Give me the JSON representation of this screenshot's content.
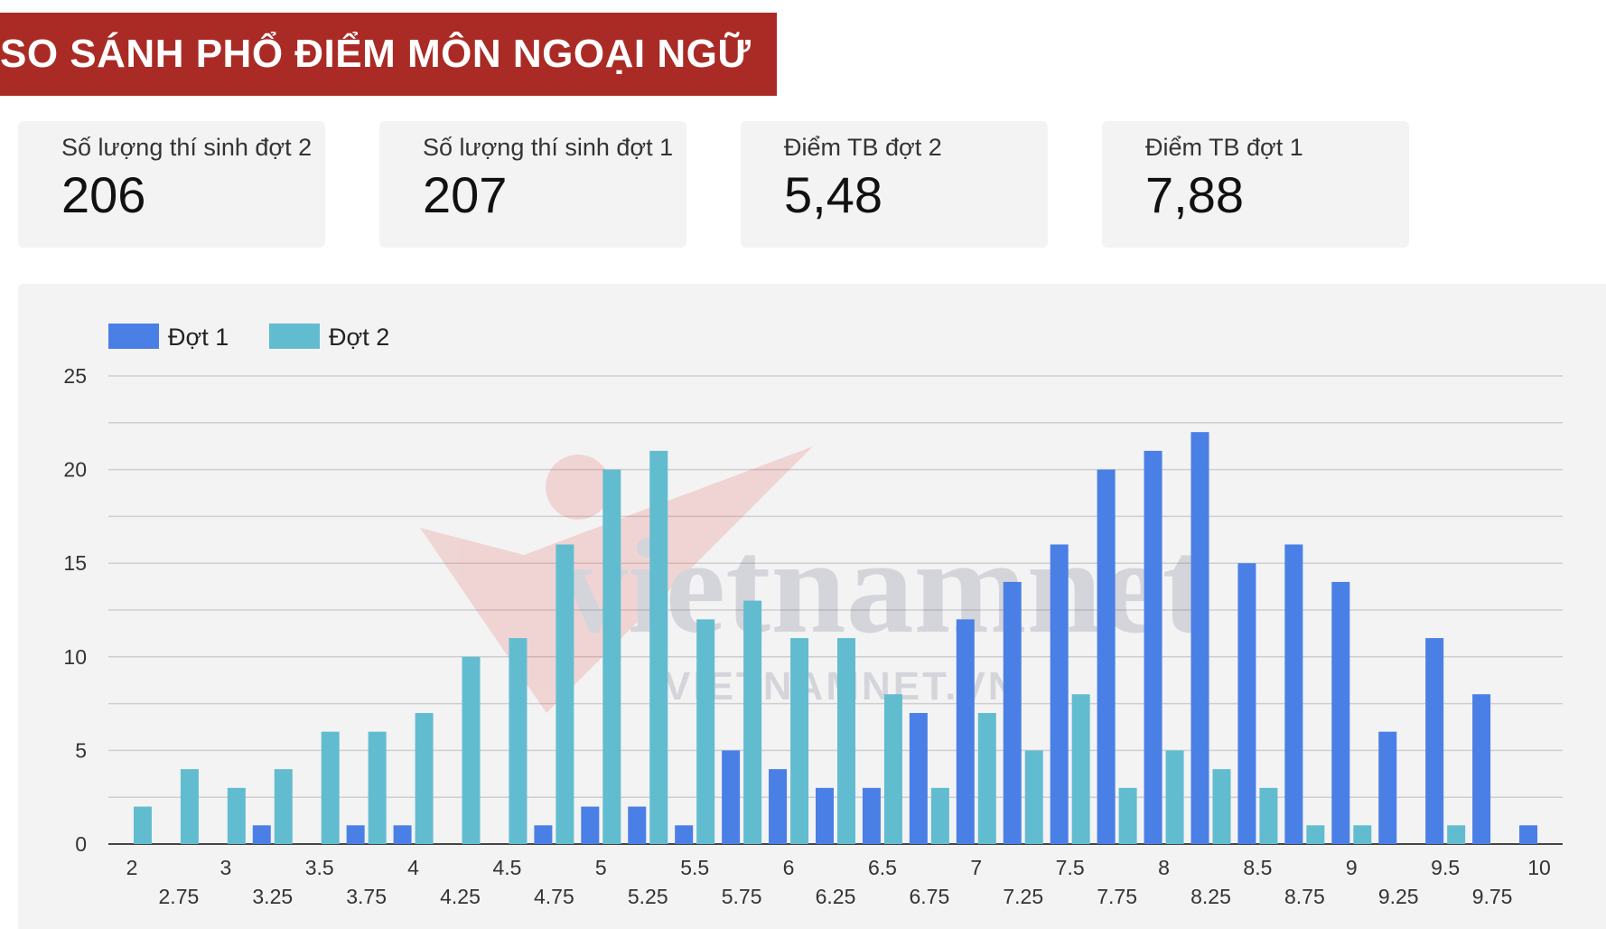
{
  "header": {
    "title": "SO SÁNH PHỔ ĐIỂM MÔN NGOẠI NGỮ"
  },
  "kpis": [
    {
      "label": "Số lượng thí sinh đợt 2",
      "value": "206"
    },
    {
      "label": "Số lượng thí sinh đợt 1",
      "value": "207"
    },
    {
      "label": "Điểm TB đợt 2",
      "value": "5,48"
    },
    {
      "label": "Điểm TB đợt 1",
      "value": "7,88"
    }
  ],
  "chart_data": {
    "type": "bar",
    "categories": [
      "2",
      "2.75",
      "3",
      "3.25",
      "3.5",
      "3.75",
      "4",
      "4.25",
      "4.5",
      "4.75",
      "5",
      "5.25",
      "5.5",
      "5.75",
      "6",
      "6.25",
      "6.5",
      "6.75",
      "7",
      "7.25",
      "7.5",
      "7.75",
      "8",
      "8.25",
      "8.5",
      "8.75",
      "9",
      "9.25",
      "9.5",
      "9.75",
      "10"
    ],
    "series": [
      {
        "name": "Đợt 1",
        "color": "#4a7fe6",
        "values": [
          0,
          0,
          0,
          1,
          0,
          1,
          1,
          0,
          0,
          1,
          2,
          2,
          1,
          5,
          4,
          3,
          3,
          7,
          12,
          14,
          16,
          20,
          21,
          22,
          15,
          16,
          14,
          6,
          11,
          8,
          1
        ]
      },
      {
        "name": "Đợt 2",
        "color": "#62bccf",
        "values": [
          2,
          4,
          3,
          4,
          6,
          6,
          7,
          10,
          11,
          16,
          20,
          21,
          12,
          13,
          11,
          11,
          8,
          3,
          7,
          5,
          8,
          3,
          5,
          4,
          3,
          1,
          1,
          0,
          1,
          0,
          0
        ]
      }
    ],
    "ylim": [
      0,
      25
    ],
    "yticks": [
      0,
      5,
      10,
      15,
      20,
      25
    ],
    "grid": true,
    "legend": "top-left",
    "watermark": "vietnamnet",
    "watermark_sub": "VIETNAMNET.VN"
  }
}
